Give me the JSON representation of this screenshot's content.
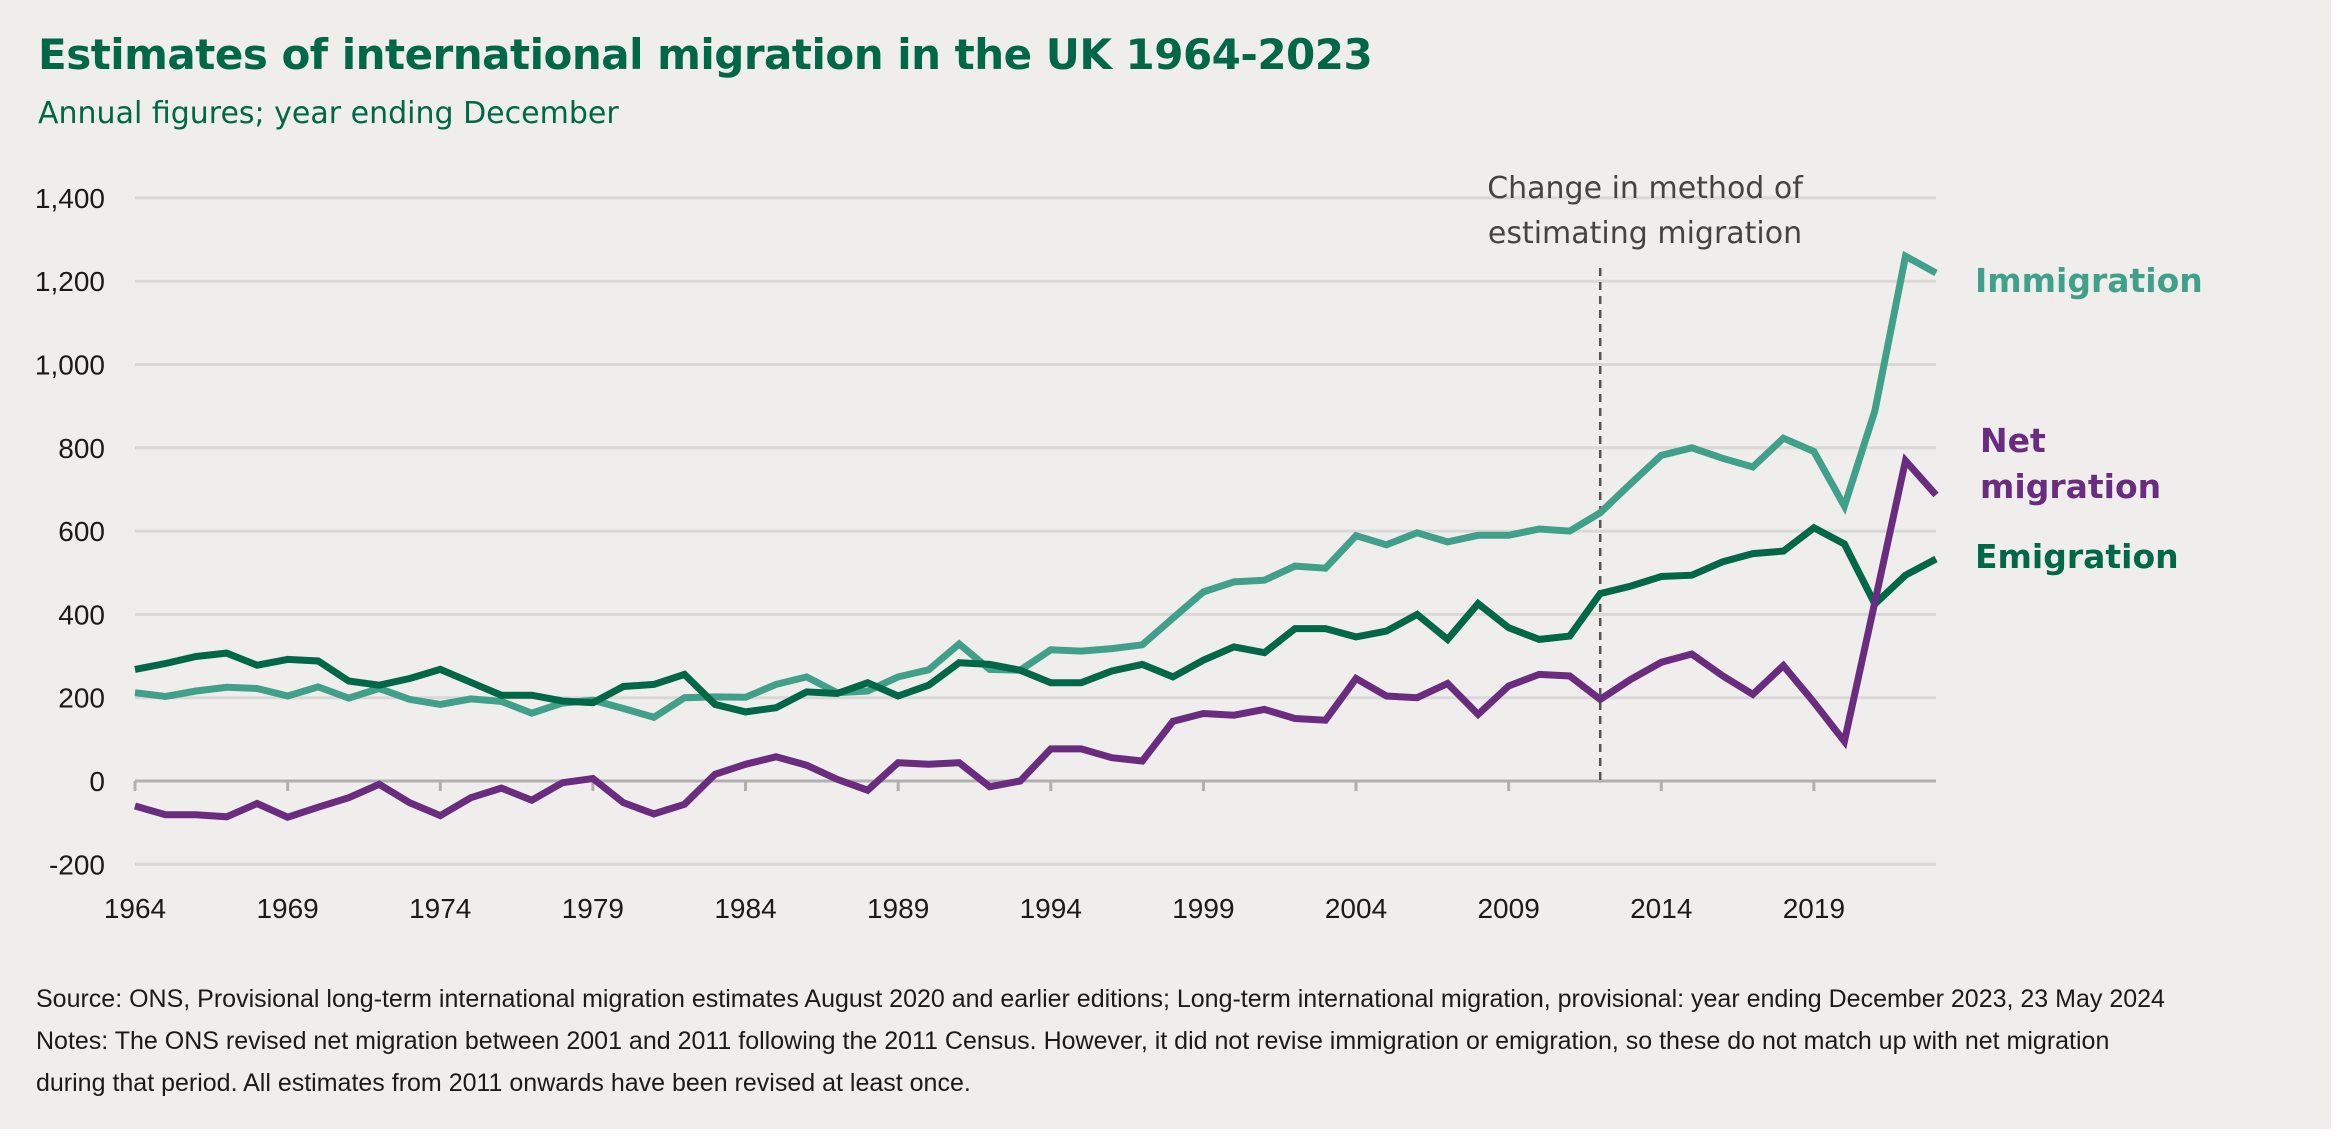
{
  "header": {
    "title": "Estimates of international migration in the UK 1964-2023",
    "subtitle": "Annual figures; year ending December"
  },
  "colors": {
    "background": "#efeeec",
    "title": "#006747",
    "immigration": "#41a08a",
    "emigration": "#006747",
    "net_migration": "#692c7f",
    "gridline": "#d9d8d6",
    "axis": "#b0b0b0",
    "annotation": "#444444"
  },
  "chart_data": {
    "type": "line",
    "title": "Estimates of international migration in the UK 1964-2023",
    "subtitle": "Annual figures; year ending December",
    "xlabel": "",
    "ylabel": "",
    "ylim": [
      -200,
      1400
    ],
    "yticks": [
      -200,
      0,
      200,
      400,
      600,
      800,
      1000,
      1200,
      1400
    ],
    "ytick_labels": [
      "-200",
      "0",
      "200",
      "400",
      "600",
      "800",
      "1,000",
      "1,200",
      "1,400"
    ],
    "xlim": [
      1964,
      2023
    ],
    "xticks": [
      1964,
      1969,
      1974,
      1979,
      1984,
      1989,
      1994,
      1999,
      2004,
      2009,
      2014,
      2019
    ],
    "xtick_labels": [
      "1964",
      "1969",
      "1974",
      "1979",
      "1984",
      "1989",
      "1994",
      "1999",
      "2004",
      "2009",
      "2014",
      "2019"
    ],
    "grid": true,
    "legend": "direct-labels-right",
    "annotation": {
      "year": 2012,
      "lines": [
        "Change in method of",
        "estimating migration"
      ],
      "style": "dashed-vertical"
    },
    "x": [
      1964,
      1965,
      1966,
      1967,
      1968,
      1969,
      1970,
      1971,
      1972,
      1973,
      1974,
      1975,
      1976,
      1977,
      1978,
      1979,
      1980,
      1981,
      1982,
      1983,
      1984,
      1985,
      1986,
      1987,
      1988,
      1989,
      1990,
      1991,
      1992,
      1993,
      1994,
      1995,
      1996,
      1997,
      1998,
      1999,
      2000,
      2001,
      2002,
      2003,
      2004,
      2005,
      2006,
      2007,
      2008,
      2009,
      2010,
      2011,
      2012,
      2013,
      2014,
      2015,
      2016,
      2017,
      2018,
      2019,
      2020,
      2021,
      2022,
      2023
    ],
    "series": [
      {
        "name": "Immigration",
        "label_lines": [
          "Immigration"
        ],
        "color_key": "immigration",
        "values": [
          212,
          203,
          216,
          225,
          222,
          204,
          226,
          199,
          222,
          196,
          184,
          197,
          191,
          163,
          187,
          194,
          174,
          153,
          200,
          202,
          201,
          232,
          250,
          212,
          216,
          250,
          267,
          329,
          268,
          266,
          315,
          312,
          318,
          327,
          391,
          454,
          478,
          482,
          516,
          511,
          589,
          567,
          596,
          574,
          590,
          590,
          605,
          600,
          644,
          714,
          782,
          800,
          775,
          754,
          823,
          791,
          660,
          889,
          1260,
          1220
        ]
      },
      {
        "name": "Emigration",
        "label_lines": [
          "Emigration"
        ],
        "color_key": "emigration",
        "values": [
          268,
          282,
          299,
          307,
          278,
          292,
          288,
          240,
          230,
          246,
          268,
          237,
          206,
          206,
          192,
          188,
          227,
          232,
          256,
          184,
          166,
          176,
          214,
          210,
          236,
          204,
          230,
          284,
          280,
          266,
          236,
          236,
          264,
          280,
          250,
          290,
          322,
          308,
          366,
          366,
          346,
          360,
          400,
          340,
          426,
          368,
          340,
          348,
          450,
          468,
          491,
          494,
          526,
          546,
          552,
          608,
          569,
          425,
          494,
          533
        ]
      },
      {
        "name": "Net migration",
        "label_lines": [
          "Net",
          "migration"
        ],
        "color_key": "net_migration",
        "values": [
          -60,
          -81,
          -81,
          -86,
          -54,
          -87,
          -63,
          -40,
          -8,
          -52,
          -83,
          -40,
          -17,
          -46,
          -4,
          6,
          -52,
          -79,
          -56,
          16,
          40,
          58,
          38,
          4,
          -22,
          44,
          40,
          44,
          -14,
          0,
          77,
          77,
          56,
          48,
          143,
          162,
          158,
          172,
          150,
          146,
          246,
          204,
          200,
          234,
          160,
          228,
          256,
          252,
          196,
          244,
          285,
          305,
          253,
          208,
          277,
          189,
          95,
          430,
          769,
          687
        ]
      }
    ]
  },
  "footer": {
    "source": "Source: ONS, Provisional long-term international migration estimates August 2020 and earlier editions; Long-term international migration, provisional: year ending December 2023, 23 May 2024",
    "notes_line1": "Notes: The ONS revised net migration between 2001 and 2011 following the 2011 Census. However, it did not revise immigration or emigration, so these do not match up with net migration",
    "notes_line2": "during that period. All estimates from 2011 onwards have been revised at least once."
  }
}
